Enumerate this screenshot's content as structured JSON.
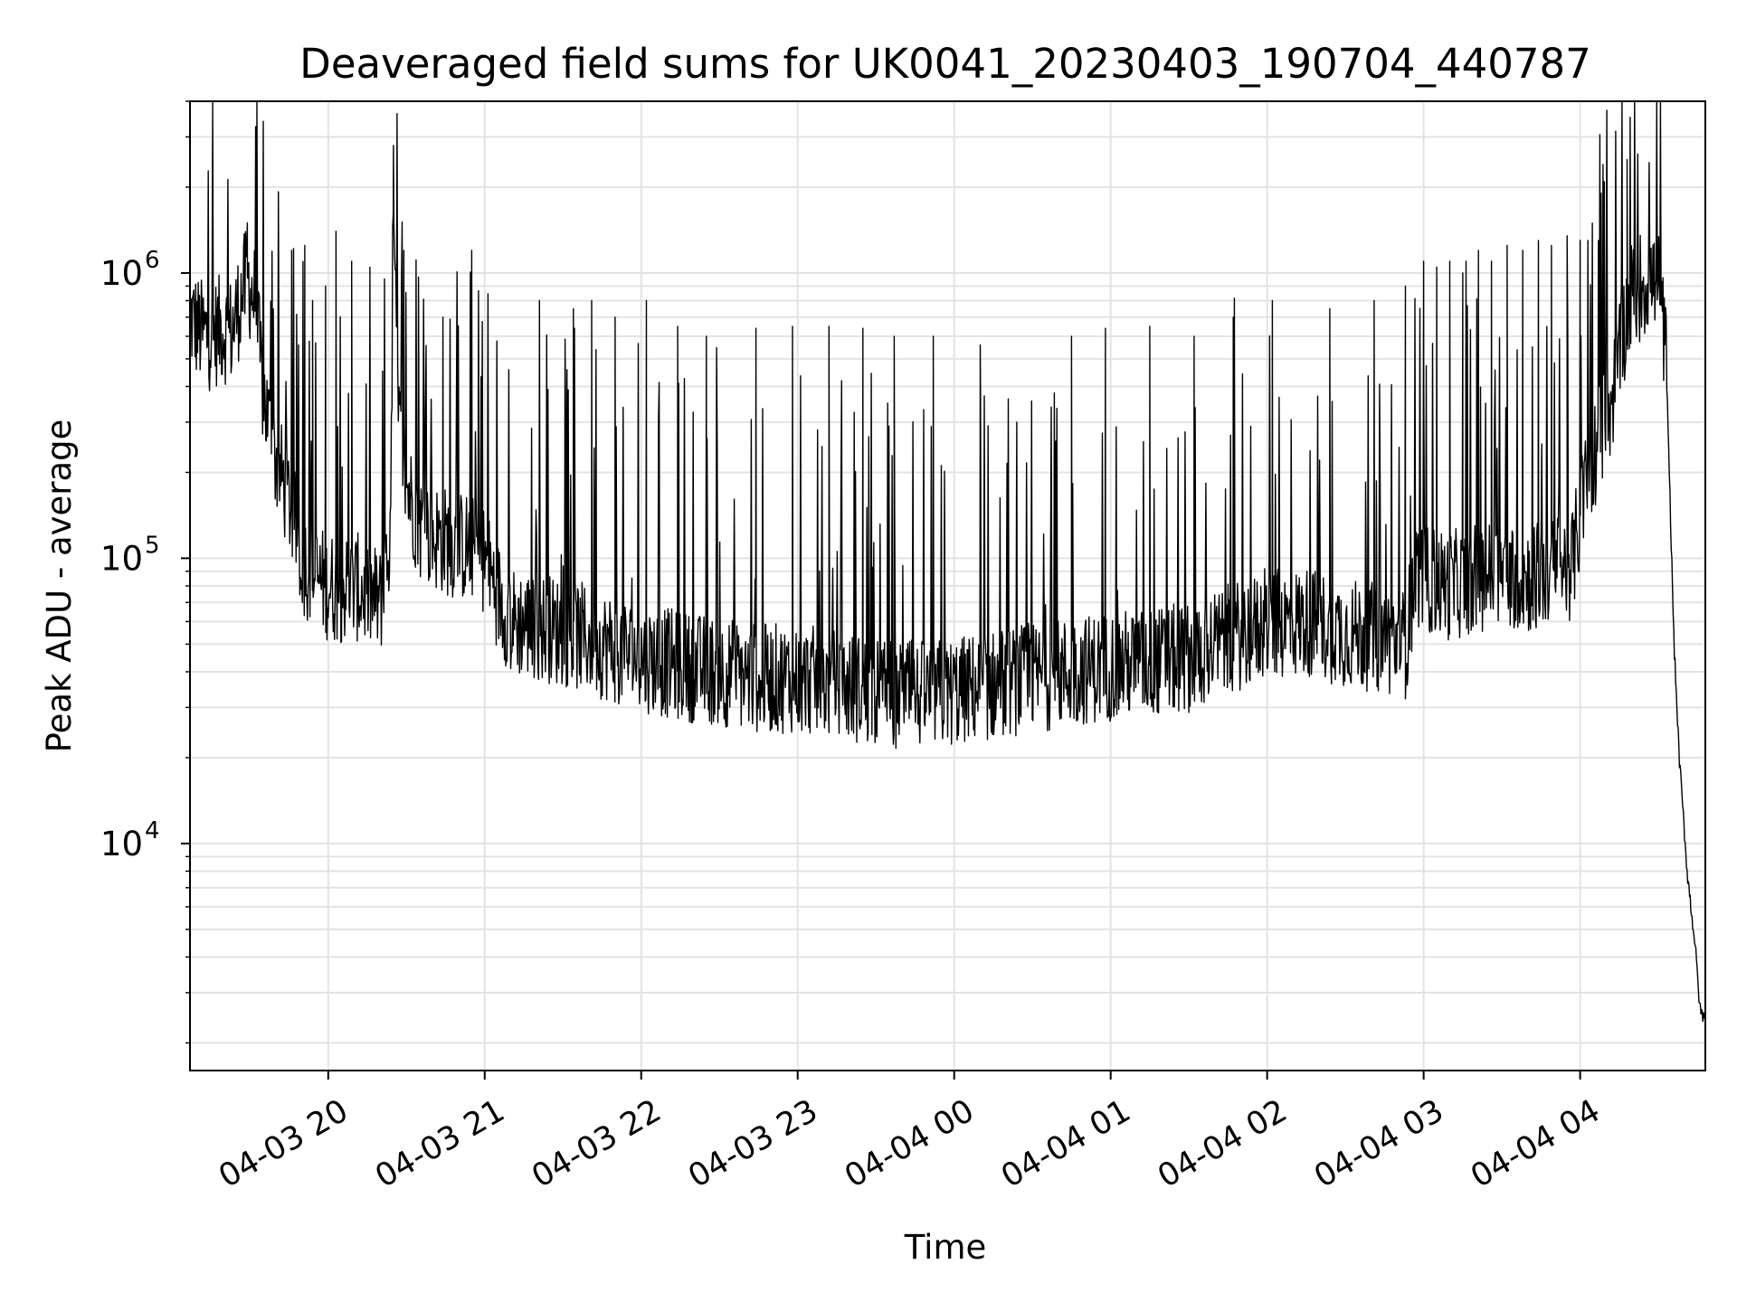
{
  "chart_data": {
    "type": "line",
    "title": "Deaveraged field sums for UK0041_20230403_190704_440787",
    "xlabel": "Time",
    "ylabel": "Peak ADU - average",
    "yscale": "log",
    "ylim": [
      1600,
      4000000
    ],
    "xlim": [
      "2023-04-03 19:07",
      "2023-04-04 04:48"
    ],
    "grid": true,
    "line_color": "#000000",
    "x_ticks": [
      {
        "time": "2023-04-03 20:00",
        "label": "04-03 20"
      },
      {
        "time": "2023-04-03 21:00",
        "label": "04-03 21"
      },
      {
        "time": "2023-04-03 22:00",
        "label": "04-03 22"
      },
      {
        "time": "2023-04-03 23:00",
        "label": "04-03 23"
      },
      {
        "time": "2023-04-04 00:00",
        "label": "04-04 00"
      },
      {
        "time": "2023-04-04 01:00",
        "label": "04-04 01"
      },
      {
        "time": "2023-04-04 02:00",
        "label": "04-04 02"
      },
      {
        "time": "2023-04-04 03:00",
        "label": "04-04 03"
      },
      {
        "time": "2023-04-04 04:00",
        "label": "04-04 04"
      }
    ],
    "y_ticks": [
      {
        "value": 10000,
        "base": "10",
        "exp": "4"
      },
      {
        "value": 100000,
        "base": "10",
        "exp": "5"
      },
      {
        "value": 1000000,
        "base": "10",
        "exp": "6"
      }
    ],
    "series": [
      {
        "points": [
          [
            "2023-04-03 19:07",
            700000
          ],
          [
            "2023-04-03 19:11",
            620000
          ],
          [
            "2023-04-03 19:15",
            600000
          ],
          [
            "2023-04-03 19:19",
            640000
          ],
          [
            "2023-04-03 19:23",
            620000
          ],
          [
            "2023-04-03 19:27",
            850000
          ],
          [
            "2023-04-03 19:29",
            950000
          ],
          [
            "2023-04-03 19:32",
            800000
          ],
          [
            "2023-04-03 19:35",
            380000
          ],
          [
            "2023-04-03 19:40",
            220000
          ],
          [
            "2023-04-03 19:45",
            160000
          ],
          [
            "2023-04-03 19:50",
            100000
          ],
          [
            "2023-04-03 19:55",
            85000
          ],
          [
            "2023-04-03 20:00",
            80000
          ],
          [
            "2023-04-03 20:05",
            78000
          ],
          [
            "2023-04-03 20:10",
            80000
          ],
          [
            "2023-04-03 20:15",
            75000
          ],
          [
            "2023-04-03 20:20",
            70000
          ],
          [
            "2023-04-03 20:24",
            120000
          ],
          [
            "2023-04-03 20:25",
            1400000
          ],
          [
            "2023-04-03 20:27",
            300000
          ],
          [
            "2023-04-03 20:30",
            180000
          ],
          [
            "2023-04-03 20:35",
            130000
          ],
          [
            "2023-04-03 20:40",
            120000
          ],
          [
            "2023-04-03 20:45",
            115000
          ],
          [
            "2023-04-03 20:50",
            110000
          ],
          [
            "2023-04-03 20:55",
            110000
          ],
          [
            "2023-04-03 21:00",
            100000
          ],
          [
            "2023-04-03 21:05",
            75000
          ],
          [
            "2023-04-03 21:10",
            60000
          ],
          [
            "2023-04-03 21:20",
            58000
          ],
          [
            "2023-04-03 21:30",
            55000
          ],
          [
            "2023-04-03 21:40",
            52000
          ],
          [
            "2023-04-03 21:50",
            48000
          ],
          [
            "2023-04-03 22:00",
            45000
          ],
          [
            "2023-04-03 22:15",
            42000
          ],
          [
            "2023-04-03 22:30",
            40000
          ],
          [
            "2023-04-03 22:45",
            38000
          ],
          [
            "2023-04-03 23:00",
            38000
          ],
          [
            "2023-04-03 23:15",
            36000
          ],
          [
            "2023-04-03 23:30",
            34000
          ],
          [
            "2023-04-03 23:45",
            33000
          ],
          [
            "2023-04-04 00:00",
            34000
          ],
          [
            "2023-04-04 00:15",
            36000
          ],
          [
            "2023-04-04 00:30",
            38000
          ],
          [
            "2023-04-04 00:45",
            40000
          ],
          [
            "2023-04-04 01:00",
            42000
          ],
          [
            "2023-04-04 01:15",
            43000
          ],
          [
            "2023-04-04 01:30",
            45000
          ],
          [
            "2023-04-04 01:45",
            52000
          ],
          [
            "2023-04-04 02:00",
            58000
          ],
          [
            "2023-04-04 02:15",
            60000
          ],
          [
            "2023-04-04 02:30",
            55000
          ],
          [
            "2023-04-04 02:45",
            52000
          ],
          [
            "2023-04-04 02:53",
            50000
          ],
          [
            "2023-04-04 02:57",
            90000
          ],
          [
            "2023-04-04 03:00",
            85000
          ],
          [
            "2023-04-04 03:10",
            80000
          ],
          [
            "2023-04-04 03:20",
            85000
          ],
          [
            "2023-04-04 03:30",
            90000
          ],
          [
            "2023-04-04 03:40",
            85000
          ],
          [
            "2023-04-04 03:50",
            90000
          ],
          [
            "2023-04-04 03:57",
            95000
          ],
          [
            "2023-04-04 04:02",
            180000
          ],
          [
            "2023-04-04 04:08",
            280000
          ],
          [
            "2023-04-04 04:12",
            350000
          ],
          [
            "2023-04-04 04:16",
            600000
          ],
          [
            "2023-04-04 04:20",
            850000
          ],
          [
            "2023-04-04 04:26",
            950000
          ],
          [
            "2023-04-04 04:30",
            900000
          ],
          [
            "2023-04-04 04:33",
            500000
          ],
          [
            "2023-04-04 04:36",
            50000
          ],
          [
            "2023-04-04 04:38",
            20000
          ],
          [
            "2023-04-04 04:41",
            8000
          ],
          [
            "2023-04-04 04:44",
            4500
          ],
          [
            "2023-04-04 04:46",
            2600
          ],
          [
            "2023-04-04 04:48",
            2400
          ]
        ],
        "spikes": [
          [
            "2023-04-03 19:29",
            1500000
          ],
          [
            "2023-04-03 19:41",
            1100000
          ],
          [
            "2023-04-03 19:46",
            1200000
          ],
          [
            "2023-04-03 19:51",
            1250000
          ],
          [
            "2023-04-03 19:54",
            800000
          ],
          [
            "2023-04-03 19:59",
            900000
          ],
          [
            "2023-04-03 20:03",
            1400000
          ],
          [
            "2023-04-03 20:09",
            1100000
          ],
          [
            "2023-04-03 20:25",
            2800000
          ],
          [
            "2023-04-03 20:29",
            1200000
          ],
          [
            "2023-04-03 20:44",
            700000
          ],
          [
            "2023-04-03 20:55",
            1200000
          ],
          [
            "2023-04-03 21:21",
            800000
          ],
          [
            "2023-04-03 21:34",
            750000
          ],
          [
            "2023-04-03 21:41",
            800000
          ],
          [
            "2023-04-03 21:50",
            700000
          ],
          [
            "2023-04-03 22:02",
            800000
          ],
          [
            "2023-04-03 22:14",
            650000
          ],
          [
            "2023-04-03 22:25",
            600000
          ],
          [
            "2023-04-03 22:44",
            640000
          ],
          [
            "2023-04-03 22:58",
            650000
          ],
          [
            "2023-04-03 23:12",
            650000
          ],
          [
            "2023-04-03 23:25",
            640000
          ],
          [
            "2023-04-03 23:37",
            600000
          ],
          [
            "2023-04-03 23:52",
            600000
          ],
          [
            "2023-04-04 00:10",
            560000
          ],
          [
            "2023-04-04 00:24",
            300000
          ],
          [
            "2023-04-04 00:45",
            600000
          ],
          [
            "2023-04-04 00:58",
            640000
          ],
          [
            "2023-04-04 01:15",
            650000
          ],
          [
            "2023-04-04 01:32",
            600000
          ],
          [
            "2023-04-04 01:47",
            700000
          ],
          [
            "2023-04-04 02:02",
            800000
          ],
          [
            "2023-04-04 02:24",
            750000
          ],
          [
            "2023-04-04 02:41",
            800000
          ],
          [
            "2023-04-04 02:53",
            900000
          ],
          [
            "2023-04-04 03:00",
            1100000
          ],
          [
            "2023-04-04 03:05",
            1050000
          ],
          [
            "2023-04-04 03:10",
            1100000
          ],
          [
            "2023-04-04 03:15",
            1000000
          ],
          [
            "2023-04-04 03:21",
            1200000
          ],
          [
            "2023-04-04 03:26",
            1100000
          ],
          [
            "2023-04-04 03:32",
            1250000
          ],
          [
            "2023-04-04 03:38",
            1200000
          ],
          [
            "2023-04-04 03:44",
            1300000
          ],
          [
            "2023-04-04 03:49",
            1250000
          ],
          [
            "2023-04-04 03:55",
            1350000
          ],
          [
            "2023-04-04 04:00",
            1300000
          ],
          [
            "2023-04-04 04:07",
            1300000
          ],
          [
            "2023-04-04 04:18",
            2500000
          ]
        ]
      }
    ]
  }
}
